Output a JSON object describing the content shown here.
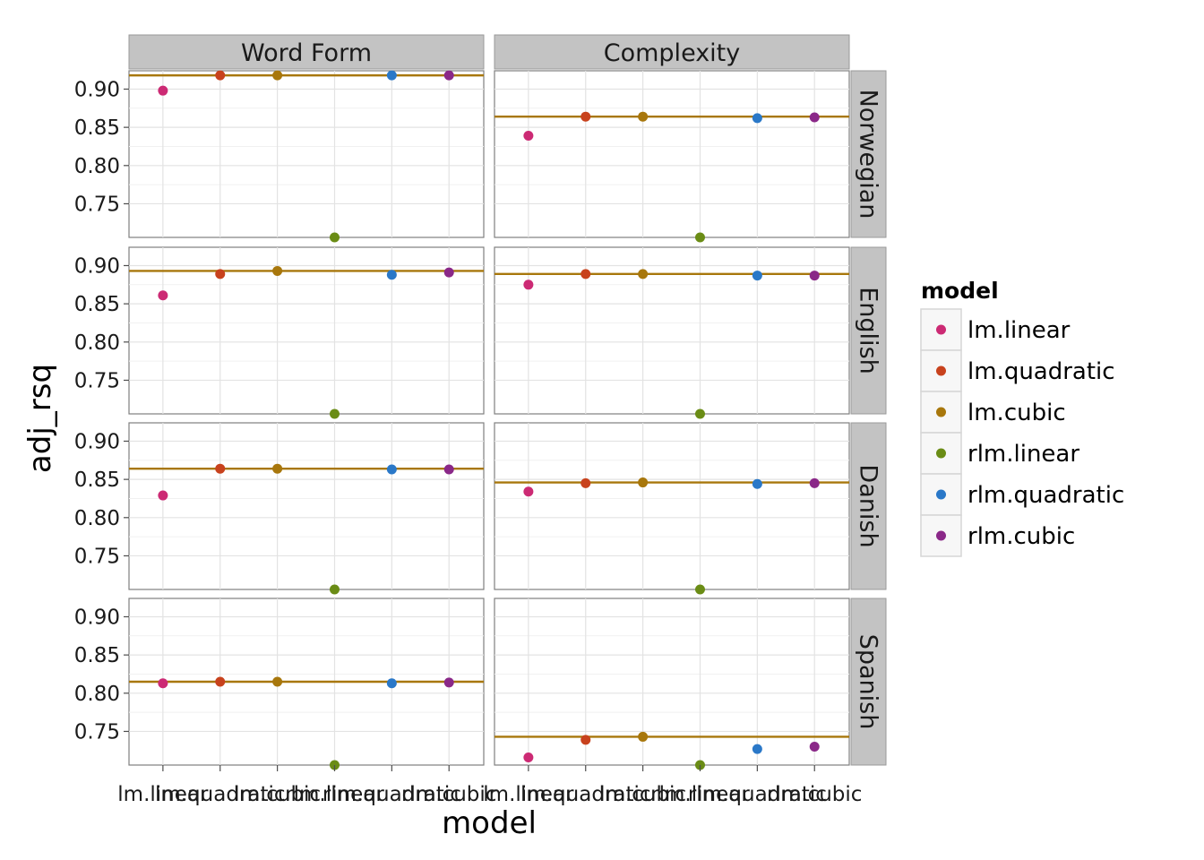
{
  "chart_data": {
    "type": "scatter",
    "x_label": "model",
    "y_label": "adj_rsq",
    "x_categories": [
      "lm.linear",
      "lm.quadratic",
      "lm.cubic",
      "rlm.linear",
      "rlm.quadratic",
      "rlm.cubic"
    ],
    "y_ticks": [
      0.75,
      0.8,
      0.85,
      0.9
    ],
    "y_tick_labels": [
      "0.75",
      "0.80",
      "0.85",
      "0.90"
    ],
    "ylim": [
      0.706,
      0.924
    ],
    "grid": true,
    "legend": {
      "title": "model",
      "placement": "right",
      "entries": [
        {
          "label": "lm.linear",
          "color": "#cc2a74"
        },
        {
          "label": "lm.quadratic",
          "color": "#c8421d"
        },
        {
          "label": "lm.cubic",
          "color": "#a8770c"
        },
        {
          "label": "rlm.linear",
          "color": "#6a8c15"
        },
        {
          "label": "rlm.quadratic",
          "color": "#2a78c8"
        },
        {
          "label": "rlm.cubic",
          "color": "#8a2888"
        }
      ]
    },
    "reference_line_color": "#a8770c",
    "columns": [
      "Word Form",
      "Complexity"
    ],
    "rows": [
      "Norwegian",
      "English",
      "Danish",
      "Spanish"
    ],
    "panels": [
      {
        "row": "Norwegian",
        "column": "Word Form",
        "hline": 0.918,
        "values": [
          0.898,
          0.918,
          0.918,
          0.705,
          0.918,
          0.918
        ]
      },
      {
        "row": "Norwegian",
        "column": "Complexity",
        "hline": 0.864,
        "values": [
          0.839,
          0.864,
          0.864,
          0.705,
          0.862,
          0.863
        ]
      },
      {
        "row": "English",
        "column": "Word Form",
        "hline": 0.893,
        "values": [
          0.861,
          0.889,
          0.893,
          0.705,
          0.888,
          0.891
        ]
      },
      {
        "row": "English",
        "column": "Complexity",
        "hline": 0.889,
        "values": [
          0.875,
          0.889,
          0.889,
          0.705,
          0.887,
          0.887
        ]
      },
      {
        "row": "Danish",
        "column": "Word Form",
        "hline": 0.864,
        "values": [
          0.829,
          0.864,
          0.864,
          0.705,
          0.863,
          0.863
        ]
      },
      {
        "row": "Danish",
        "column": "Complexity",
        "hline": 0.846,
        "values": [
          0.834,
          0.845,
          0.846,
          0.705,
          0.844,
          0.845
        ]
      },
      {
        "row": "Spanish",
        "column": "Word Form",
        "hline": 0.815,
        "values": [
          0.813,
          0.815,
          0.815,
          0.705,
          0.813,
          0.814
        ]
      },
      {
        "row": "Spanish",
        "column": "Complexity",
        "hline": 0.743,
        "values": [
          0.716,
          0.739,
          0.743,
          0.705,
          0.727,
          0.73
        ]
      }
    ]
  }
}
